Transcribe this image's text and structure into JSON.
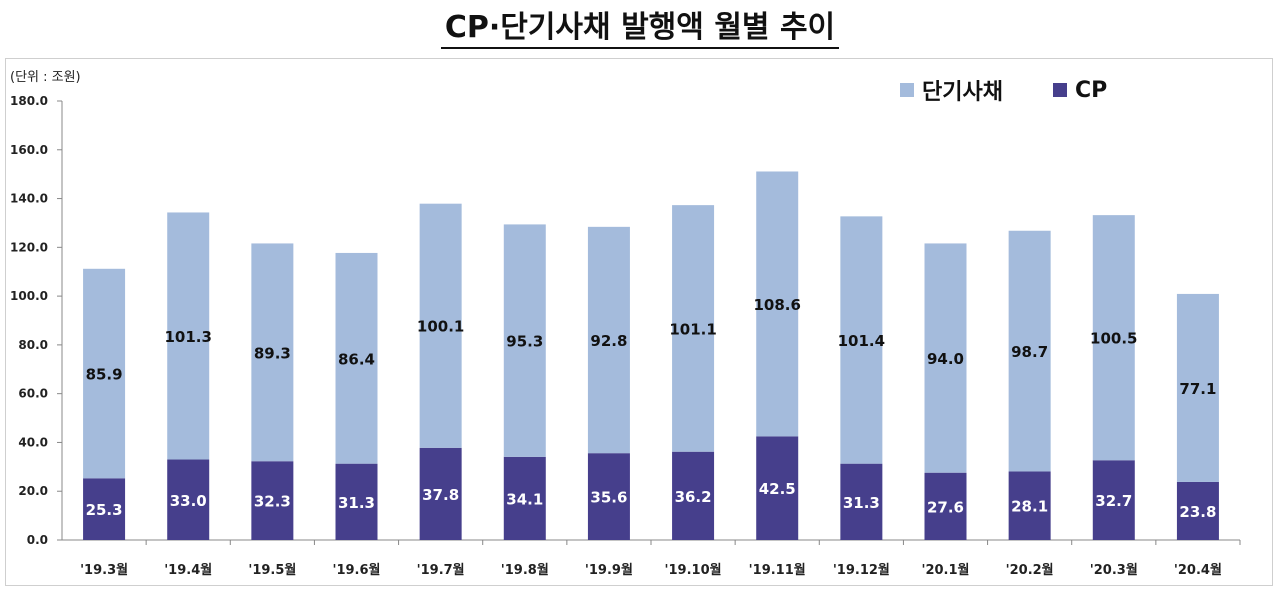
{
  "title": "CP·단기사채 발행액 월별 추이",
  "unit_label": "(단위 : 조원)",
  "legend": [
    {
      "label": "단기사채",
      "color": "#a4bbdc"
    },
    {
      "label": "CP",
      "color": "#463f8c"
    }
  ],
  "chart_data": {
    "type": "bar",
    "stacked": true,
    "categories": [
      "'19.3월",
      "'19.4월",
      "'19.5월",
      "'19.6월",
      "'19.7월",
      "'19.8월",
      "'19.9월",
      "'19.10월",
      "'19.11월",
      "'19.12월",
      "'20.1월",
      "'20.2월",
      "'20.3월",
      "'20.4월"
    ],
    "series": [
      {
        "name": "CP",
        "color": "#463f8c",
        "values": [
          25.3,
          33.0,
          32.3,
          31.3,
          37.8,
          34.1,
          35.6,
          36.2,
          42.5,
          31.3,
          27.6,
          28.1,
          32.7,
          23.8
        ]
      },
      {
        "name": "단기사채",
        "color": "#a4bbdc",
        "values": [
          85.9,
          101.3,
          89.3,
          86.4,
          100.1,
          95.3,
          92.8,
          101.1,
          108.6,
          101.4,
          94.0,
          98.7,
          100.5,
          77.1
        ]
      }
    ],
    "ylim": [
      0,
      180
    ],
    "yticks": [
      "0.0",
      "20.0",
      "40.0",
      "60.0",
      "80.0",
      "100.0",
      "120.0",
      "140.0",
      "160.0",
      "180.0"
    ],
    "grid": false,
    "legend_position": "top-right"
  }
}
